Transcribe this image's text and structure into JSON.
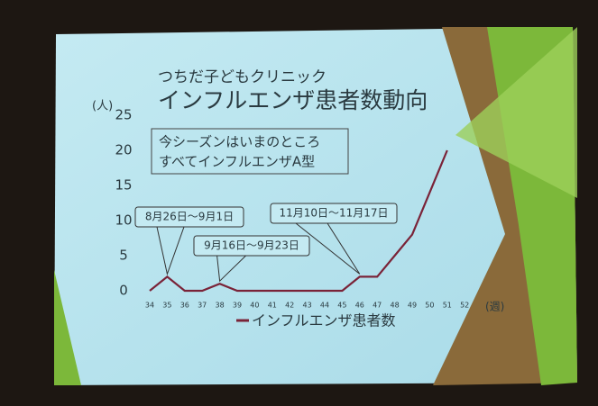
{
  "chart_data": {
    "type": "line",
    "title": "つちだ子どもクリニック",
    "subtitle": "インフルエンザ患者数動向",
    "y_unit": "(人)",
    "x_unit": "(週)",
    "note": [
      "今シーズンはいまのところ",
      "すべてインフルエンザA型"
    ],
    "annotations": [
      "8月26日～9月1日",
      "9月16日～9月23日",
      "11月10日～11月17日"
    ],
    "categories": [
      "34",
      "35",
      "36",
      "37",
      "38",
      "39",
      "40",
      "41",
      "42",
      "43",
      "44",
      "45",
      "46",
      "47",
      "48",
      "49",
      "50",
      "51",
      "52"
    ],
    "series": [
      {
        "name": "インフルエンザ患者数",
        "color": "#7a2338",
        "values": [
          0,
          2,
          0,
          0,
          1,
          0,
          0,
          0,
          0,
          0,
          0,
          0,
          2,
          2,
          5,
          8,
          14,
          20,
          null
        ]
      }
    ],
    "ylim": [
      0,
      25
    ],
    "yticks": [
      0,
      5,
      10,
      15,
      20,
      25
    ],
    "grid": false
  }
}
